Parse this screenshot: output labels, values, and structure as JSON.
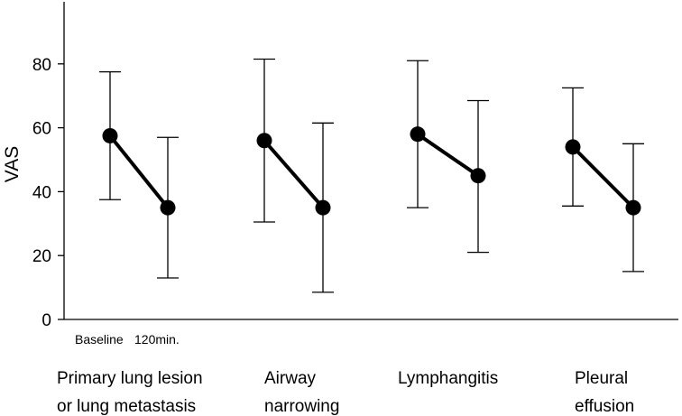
{
  "chart_data": {
    "type": "line",
    "title": "",
    "ylabel": "VAS",
    "ylim": [
      0,
      100
    ],
    "yticks": [
      0,
      20,
      40,
      60,
      80
    ],
    "timepoints": [
      "Baseline",
      "120min."
    ],
    "groups": [
      {
        "label_lines": [
          "Primary lung lesion",
          "or lung metastasis"
        ],
        "means": [
          57.5,
          35
        ],
        "upper": [
          77.5,
          57
        ],
        "lower": [
          37.5,
          13
        ]
      },
      {
        "label_lines": [
          "Airway",
          "narrowing"
        ],
        "means": [
          56,
          35
        ],
        "upper": [
          81.5,
          61.5
        ],
        "lower": [
          30.5,
          8.5
        ]
      },
      {
        "label_lines": [
          "Lymphangitis"
        ],
        "means": [
          58,
          45
        ],
        "upper": [
          81,
          68.5
        ],
        "lower": [
          35,
          21
        ]
      },
      {
        "label_lines": [
          "Pleural",
          "effusion"
        ],
        "means": [
          54,
          35
        ],
        "upper": [
          72.5,
          55
        ],
        "lower": [
          35.5,
          15
        ]
      }
    ],
    "grid": false,
    "colors": {
      "marks": "#000000",
      "background": "#ffffff"
    }
  }
}
